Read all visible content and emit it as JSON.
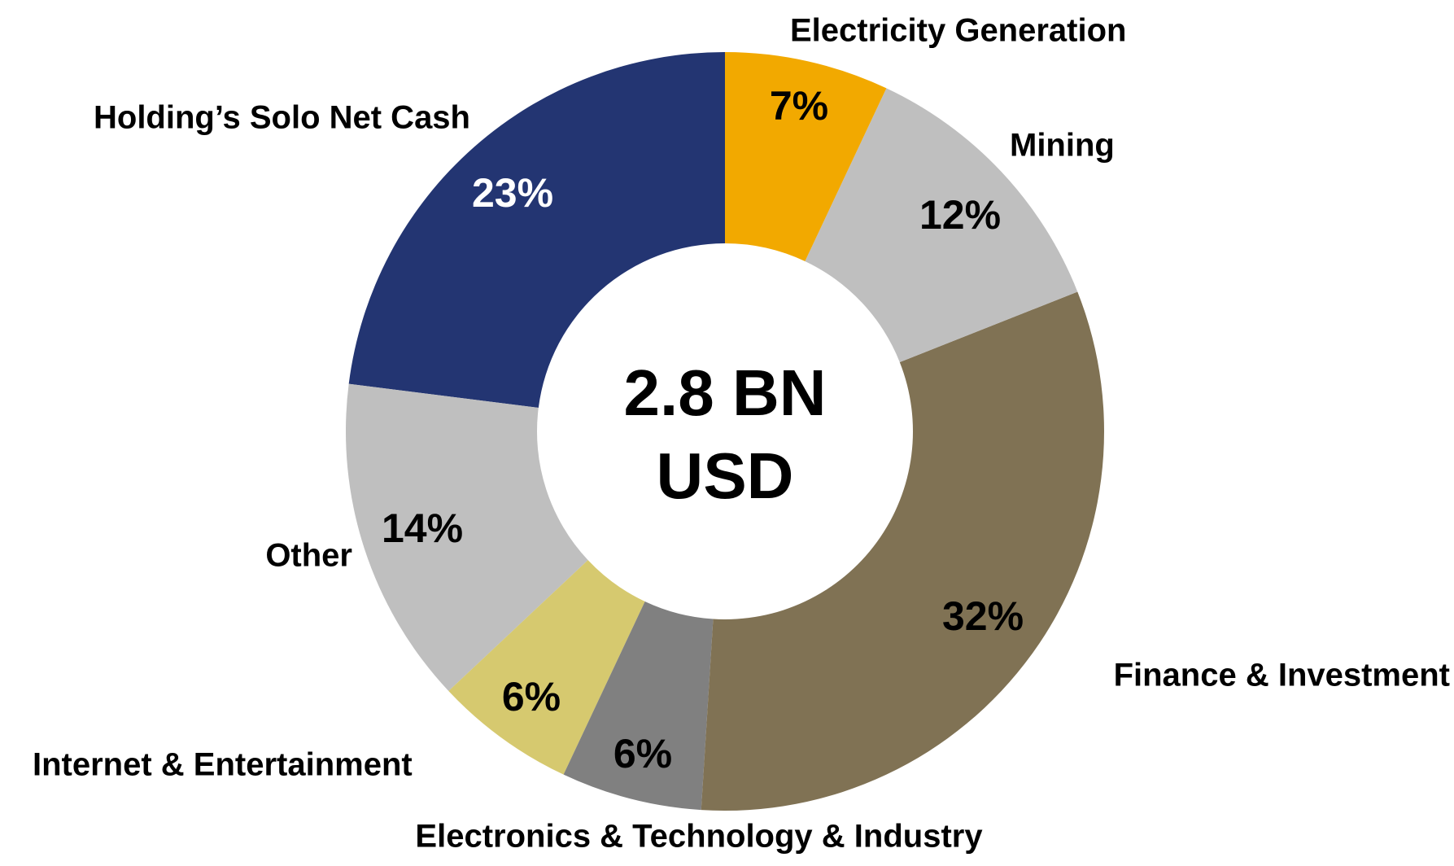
{
  "chart_data": {
    "type": "donut",
    "center_label": [
      "2.8 BN",
      "USD"
    ],
    "categories": [
      "Electricity Generation",
      "Mining",
      "Finance & Investment",
      "Electronics & Technology & Industry",
      "Internet & Entertainment",
      "Other",
      "Holding’s Solo Net Cash"
    ],
    "values": [
      7,
      12,
      32,
      6,
      6,
      14,
      23
    ],
    "value_labels": [
      "7%",
      "12%",
      "32%",
      "6%",
      "6%",
      "14%",
      "23%"
    ],
    "colors": [
      "#f2a900",
      "#bfbfbf",
      "#807254",
      "#808080",
      "#d6c96f",
      "#bfbfbf",
      "#233572"
    ]
  }
}
